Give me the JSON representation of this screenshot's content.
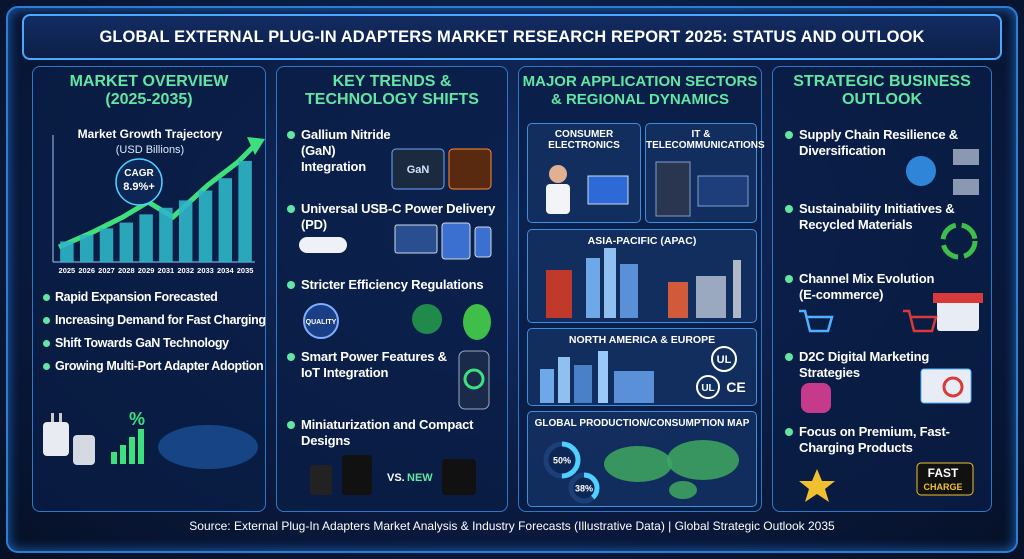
{
  "title": "GLOBAL EXTERNAL PLUG-IN ADAPTERS MARKET RESEARCH REPORT 2025: STATUS AND OUTLOOK",
  "overview": {
    "title": [
      "MARKET OVERVIEW",
      "(2025-2035)"
    ],
    "chart": {
      "type": "bar",
      "title": "Market Growth Trajectory",
      "subtitle": "(USD Billions)",
      "annotation": [
        "CAGR",
        "8.9%+"
      ],
      "categories": [
        "2025",
        "2026",
        "2027",
        "2028",
        "2029",
        "2031",
        "2032",
        "2033",
        "2034",
        "2035"
      ],
      "values": [
        2.5,
        3.3,
        4.1,
        4.8,
        5.8,
        6.6,
        7.5,
        8.7,
        10.2,
        12.3
      ],
      "ylim": [
        0,
        14
      ],
      "color": "#2fb6c8"
    },
    "bullets": [
      "Rapid Expansion Forecasted",
      "Increasing Demand for Fast Charging",
      "Shift Towards GaN Technology",
      "Growing Multi-Port Adapter Adoption"
    ],
    "percent_icon": "%"
  },
  "trends": {
    "title": [
      "KEY TRENDS &",
      "TECHNOLOGY SHIFTS"
    ],
    "items": [
      "Gallium Nitride (GaN) Integration",
      "Universal USB-C Power Delivery (PD)",
      "Stricter Efficiency Regulations",
      "Smart Power Features & IoT Integration",
      "Miniaturization and Compact Designs"
    ],
    "chip_label": "GaN",
    "badge_label": "QUALITY",
    "vs_label": "VS.",
    "new_label": "NEW"
  },
  "sectors": {
    "title": [
      "MAJOR APPLICATION SECTORS",
      "& REGIONAL DYNAMICS"
    ],
    "boxes": [
      [
        "CONSUMER",
        "ELECTRONICS"
      ],
      [
        "IT &",
        "TELECOMMUNICATIONS"
      ]
    ],
    "regions": [
      "ASIA-PACIFIC (APAC)",
      "NORTH AMERICA & EUROPE"
    ],
    "certs": [
      "UL",
      "UL",
      "CE"
    ],
    "map": {
      "title": "GLOBAL PRODUCTION/CONSUMPTION MAP",
      "stats": [
        {
          "value": 50,
          "label": "50%"
        },
        {
          "value": 38,
          "label": "38%"
        }
      ]
    }
  },
  "outlook": {
    "title": [
      "STRATEGIC BUSINESS",
      "OUTLOOK"
    ],
    "items": [
      "Supply Chain Resilience & Diversification",
      "Sustainability Initiatives & Recycled Materials",
      "Channel Mix Evolution (E-commerce)",
      "D2C Digital Marketing Strategies",
      "Focus on Premium, Fast-Charging Products"
    ],
    "fast_badge": [
      "FAST",
      "CHARGE"
    ]
  },
  "footer": "Source: External Plug-In Adapters Market Analysis & Industry Forecasts (Illustrative Data) | Global Strategic Outlook 2035"
}
